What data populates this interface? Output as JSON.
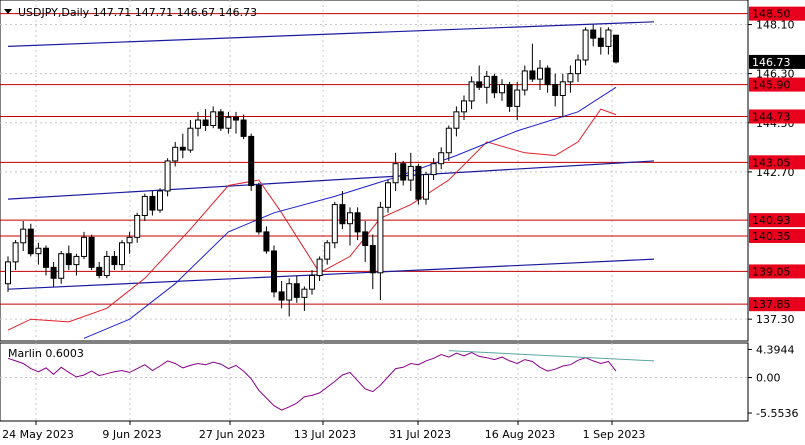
{
  "window": {
    "symbol": "USDJPY",
    "timeframe": "Daily",
    "ohlc": "147.71 147.71 146.67 146.73",
    "indicator_label": "Marlin 0.6003"
  },
  "colors": {
    "bull": "#ffffff",
    "bear": "#000000",
    "level_line": "#c00000",
    "level_badge": "#e8001c",
    "blue_line": "#1a1aa0",
    "ma_red": "#e0202a",
    "ma_blue": "#2020d0",
    "oscillator": "#8b008b",
    "divergence": "#5aa8a0",
    "grid": "#c8c8c8"
  },
  "chart_data": [
    {
      "type": "candlestick",
      "title": "USDJPY,Daily",
      "price_axis": {
        "min": 136.5,
        "max": 149.0,
        "ticks": [
          "148.10",
          "146.30",
          "144.50",
          "142.70",
          "137.30"
        ]
      },
      "time_axis": {
        "ticks": [
          "24 May 2023",
          "9 Jun 2023",
          "27 Jun 2023",
          "13 Jul 2023",
          "31 Jul 2023",
          "16 Aug 2023",
          "1 Sep 2023"
        ]
      },
      "current_price": "146.73",
      "horizontal_levels": [
        "148.50",
        "145.90",
        "144.73",
        "143.05",
        "140.93",
        "140.35",
        "139.05",
        "137.85"
      ],
      "candles": [
        [
          138.6,
          139.6,
          138.3,
          139.4
        ],
        [
          139.4,
          140.2,
          139.1,
          140.1
        ],
        [
          140.1,
          140.9,
          139.8,
          140.6
        ],
        [
          140.6,
          140.8,
          139.6,
          139.7
        ],
        [
          139.7,
          140.1,
          139.3,
          139.9
        ],
        [
          139.9,
          140.0,
          138.9,
          139.2
        ],
        [
          139.2,
          139.4,
          138.5,
          138.8
        ],
        [
          138.8,
          139.8,
          138.6,
          139.7
        ],
        [
          139.7,
          140.0,
          139.1,
          139.3
        ],
        [
          139.3,
          139.7,
          138.9,
          139.6
        ],
        [
          139.6,
          140.5,
          139.5,
          140.3
        ],
        [
          140.3,
          140.4,
          139.1,
          139.2
        ],
        [
          139.2,
          139.4,
          138.8,
          138.9
        ],
        [
          138.9,
          139.8,
          138.8,
          139.6
        ],
        [
          139.6,
          139.8,
          139.1,
          139.3
        ],
        [
          139.3,
          140.2,
          139.1,
          140.1
        ],
        [
          140.1,
          140.5,
          139.7,
          140.3
        ],
        [
          140.3,
          141.2,
          140.1,
          141.1
        ],
        [
          141.1,
          141.9,
          140.9,
          141.8
        ],
        [
          141.8,
          142.0,
          141.1,
          141.3
        ],
        [
          141.3,
          142.1,
          141.2,
          142.0
        ],
        [
          142.0,
          143.2,
          141.8,
          143.1
        ],
        [
          143.1,
          143.8,
          142.9,
          143.6
        ],
        [
          143.6,
          144.1,
          143.2,
          143.5
        ],
        [
          143.5,
          144.6,
          143.4,
          144.3
        ],
        [
          144.3,
          144.9,
          144.0,
          144.6
        ],
        [
          144.6,
          145.0,
          144.2,
          144.4
        ],
        [
          144.4,
          145.1,
          144.3,
          144.9
        ],
        [
          144.9,
          145.0,
          144.2,
          144.3
        ],
        [
          144.3,
          144.9,
          144.1,
          144.7
        ],
        [
          144.7,
          144.9,
          144.1,
          144.6
        ],
        [
          144.6,
          144.8,
          143.9,
          144.0
        ],
        [
          144.0,
          144.1,
          142.0,
          142.2
        ],
        [
          142.2,
          142.3,
          140.4,
          140.5
        ],
        [
          140.5,
          140.7,
          139.7,
          139.8
        ],
        [
          139.8,
          140.0,
          138.1,
          138.3
        ],
        [
          138.3,
          138.7,
          137.7,
          138.0
        ],
        [
          138.0,
          138.8,
          137.4,
          138.6
        ],
        [
          138.6,
          138.9,
          137.9,
          138.1
        ],
        [
          138.1,
          138.5,
          137.6,
          138.4
        ],
        [
          138.4,
          139.1,
          138.2,
          138.9
        ],
        [
          138.9,
          139.6,
          138.7,
          139.5
        ],
        [
          139.5,
          140.2,
          139.3,
          140.1
        ],
        [
          140.1,
          141.6,
          139.9,
          141.5
        ],
        [
          141.5,
          142.0,
          140.6,
          140.8
        ],
        [
          140.8,
          141.4,
          140.0,
          141.2
        ],
        [
          141.2,
          141.4,
          140.2,
          140.5
        ],
        [
          140.5,
          140.9,
          139.4,
          140.0
        ],
        [
          140.0,
          140.4,
          138.4,
          139.0
        ],
        [
          139.0,
          141.6,
          138.0,
          141.4
        ],
        [
          141.4,
          142.4,
          141.2,
          142.3
        ],
        [
          142.3,
          143.4,
          142.0,
          143.0
        ],
        [
          143.0,
          143.1,
          142.2,
          142.4
        ],
        [
          142.4,
          143.4,
          142.0,
          142.9
        ],
        [
          142.9,
          143.0,
          141.5,
          141.7
        ],
        [
          141.7,
          142.7,
          141.5,
          142.6
        ],
        [
          142.6,
          143.2,
          142.4,
          143.0
        ],
        [
          143.0,
          143.6,
          142.8,
          143.4
        ],
        [
          143.4,
          144.4,
          143.1,
          144.3
        ],
        [
          144.3,
          145.1,
          144.0,
          144.9
        ],
        [
          144.9,
          145.5,
          144.6,
          145.3
        ],
        [
          145.3,
          146.2,
          145.0,
          146.0
        ],
        [
          146.0,
          146.6,
          145.7,
          145.8
        ],
        [
          145.8,
          146.4,
          145.2,
          146.2
        ],
        [
          146.2,
          146.3,
          145.4,
          145.6
        ],
        [
          145.6,
          146.1,
          145.3,
          145.9
        ],
        [
          145.9,
          146.0,
          144.9,
          145.1
        ],
        [
          145.1,
          146.0,
          144.6,
          145.7
        ],
        [
          145.7,
          146.6,
          145.5,
          146.4
        ],
        [
          146.4,
          147.4,
          146.0,
          146.1
        ],
        [
          146.1,
          146.8,
          145.7,
          146.5
        ],
        [
          146.5,
          146.6,
          145.6,
          145.9
        ],
        [
          145.9,
          146.3,
          145.1,
          145.5
        ],
        [
          145.5,
          146.3,
          144.7,
          146.0
        ],
        [
          146.0,
          146.6,
          145.6,
          146.3
        ],
        [
          146.3,
          147.0,
          146.0,
          146.8
        ],
        [
          146.8,
          148.0,
          146.6,
          147.9
        ],
        [
          147.9,
          148.1,
          147.3,
          147.6
        ],
        [
          147.6,
          148.0,
          147.0,
          147.3
        ],
        [
          147.3,
          148.0,
          147.0,
          147.9
        ],
        [
          147.71,
          147.71,
          146.67,
          146.73
        ]
      ],
      "moving_average_fast": [
        {
          "i": 0,
          "v": 136.9
        },
        {
          "i": 3,
          "v": 137.3
        },
        {
          "i": 8,
          "v": 137.2
        },
        {
          "i": 13,
          "v": 137.7
        },
        {
          "i": 18,
          "v": 138.8
        },
        {
          "i": 24,
          "v": 140.6
        },
        {
          "i": 29,
          "v": 142.2
        },
        {
          "i": 33,
          "v": 142.4
        },
        {
          "i": 36,
          "v": 141.2
        },
        {
          "i": 41,
          "v": 139.0
        },
        {
          "i": 45,
          "v": 139.6
        },
        {
          "i": 49,
          "v": 141.0
        },
        {
          "i": 53,
          "v": 141.5
        },
        {
          "i": 58,
          "v": 142.4
        },
        {
          "i": 63,
          "v": 143.8
        },
        {
          "i": 68,
          "v": 143.4
        },
        {
          "i": 72,
          "v": 143.3
        },
        {
          "i": 75,
          "v": 143.8
        },
        {
          "i": 78,
          "v": 145.0
        },
        {
          "i": 80,
          "v": 144.8
        }
      ],
      "moving_average_slow": [
        {
          "i": 10,
          "v": 136.6
        },
        {
          "i": 16,
          "v": 137.3
        },
        {
          "i": 22,
          "v": 138.6
        },
        {
          "i": 29,
          "v": 140.5
        },
        {
          "i": 35,
          "v": 141.2
        },
        {
          "i": 43,
          "v": 141.8
        },
        {
          "i": 51,
          "v": 142.5
        },
        {
          "i": 59,
          "v": 143.3
        },
        {
          "i": 67,
          "v": 144.2
        },
        {
          "i": 75,
          "v": 144.9
        },
        {
          "i": 80,
          "v": 145.8
        }
      ],
      "trendlines": [
        {
          "from": {
            "i": 0,
            "v": 147.3
          },
          "to": {
            "i": 85,
            "v": 148.2
          }
        },
        {
          "from": {
            "i": 0,
            "v": 141.7
          },
          "to": {
            "i": 85,
            "v": 143.1
          }
        },
        {
          "from": {
            "i": 0,
            "v": 138.4
          },
          "to": {
            "i": 85,
            "v": 139.5
          }
        }
      ]
    },
    {
      "type": "line",
      "title": "Marlin 0.6003",
      "y_axis": {
        "min": -6.8,
        "max": 5.4,
        "ticks": [
          "4.3944",
          "0.00",
          "-5.5536"
        ]
      },
      "values": [
        3.0,
        2.6,
        2.2,
        1.4,
        0.9,
        1.5,
        0.5,
        1.6,
        0.8,
        0.1,
        0.4,
        1.0,
        0.3,
        0.6,
        0.9,
        1.1,
        0.8,
        1.4,
        2.0,
        1.1,
        1.8,
        2.6,
        2.2,
        1.5,
        1.9,
        2.2,
        2.0,
        2.4,
        2.1,
        1.4,
        1.9,
        1.0,
        -0.2,
        -2.0,
        -3.2,
        -4.4,
        -5.1,
        -4.6,
        -4.0,
        -3.0,
        -2.8,
        -2.4,
        -1.5,
        -0.6,
        0.4,
        0.8,
        -0.5,
        -1.8,
        -2.2,
        -1.2,
        0.1,
        1.4,
        1.6,
        2.2,
        2.0,
        2.6,
        3.0,
        3.6,
        3.2,
        3.8,
        3.4,
        3.9,
        3.3,
        3.1,
        2.8,
        3.2,
        2.6,
        2.2,
        2.8,
        2.5,
        1.6,
        1.0,
        1.3,
        1.8,
        2.0,
        2.7,
        3.1,
        2.6,
        2.2,
        2.5,
        1.0
      ],
      "divergence_line": {
        "from": {
          "i": 58,
          "v": 4.2
        },
        "to": {
          "i": 85,
          "v": 2.6
        }
      }
    }
  ]
}
